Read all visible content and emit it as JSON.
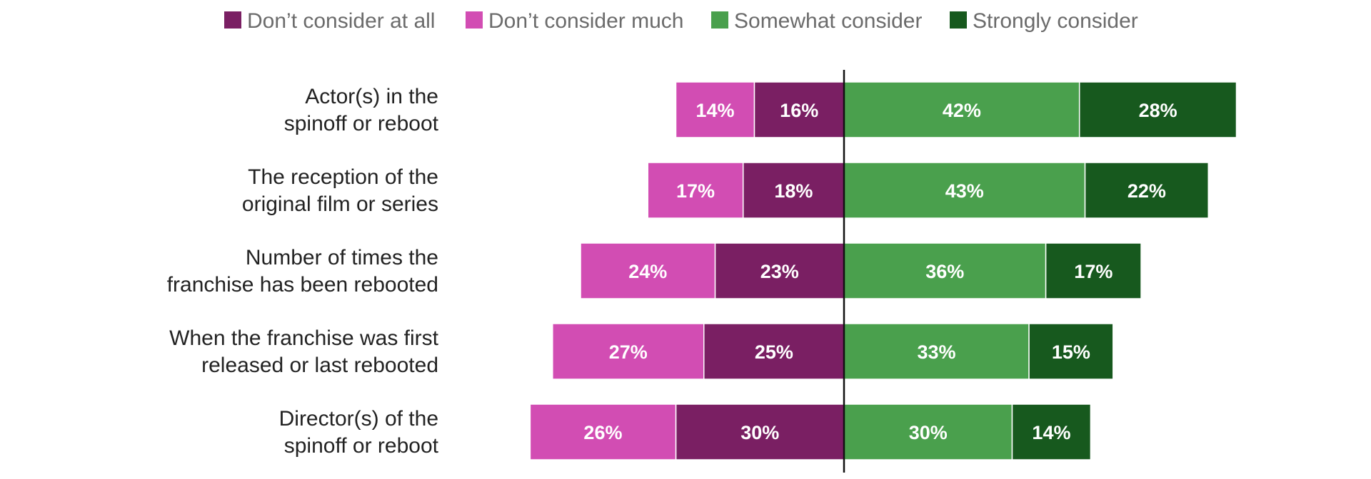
{
  "chart_data": {
    "type": "bar",
    "orientation": "horizontal",
    "stacking": "diverging",
    "title": "",
    "xlabel": "",
    "ylabel": "",
    "grid": false,
    "legend_position": "top",
    "categories": [
      [
        "Actor(s) in the",
        "spinoff or reboot"
      ],
      [
        "The reception of the",
        "original film or series"
      ],
      [
        "Number of times the",
        "franchise has been rebooted"
      ],
      [
        "When the franchise was first",
        "released or last rebooted"
      ],
      [
        "Director(s) of the",
        "spinoff or reboot"
      ]
    ],
    "series": [
      {
        "name": "Don’t consider at all",
        "side": "negative",
        "color": "#7a1f63",
        "values": [
          16,
          18,
          23,
          25,
          30
        ],
        "labels": [
          "16%",
          "18%",
          "23%",
          "25%",
          "30%"
        ]
      },
      {
        "name": "Don’t consider much",
        "side": "negative",
        "color": "#d24db3",
        "values": [
          14,
          17,
          24,
          27,
          26
        ],
        "labels": [
          "14%",
          "17%",
          "24%",
          "27%",
          "26%"
        ]
      },
      {
        "name": "Somewhat consider",
        "side": "positive",
        "color": "#4aa04d",
        "values": [
          42,
          43,
          36,
          33,
          30
        ],
        "labels": [
          "42%",
          "43%",
          "36%",
          "33%",
          "30%"
        ]
      },
      {
        "name": "Strongly consider",
        "side": "positive",
        "color": "#17591e",
        "values": [
          28,
          22,
          17,
          15,
          14
        ],
        "labels": [
          "28%",
          "22%",
          "17%",
          "15%",
          "14%"
        ]
      }
    ]
  }
}
